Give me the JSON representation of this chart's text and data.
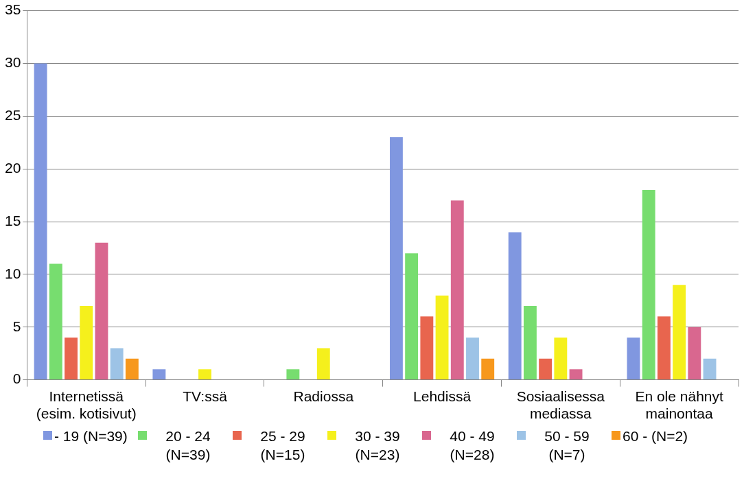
{
  "chart_data": {
    "type": "bar",
    "categories": [
      "Internetissä (esim. kotisivut)",
      "TV:ssä",
      "Radiossa",
      "Lehdissä",
      "Sosiaalisessa mediassa",
      "En ole nähnyt mainontaa"
    ],
    "series": [
      {
        "name": "- 19 (N=39)",
        "color": "#8097e0",
        "values": [
          30,
          1,
          null,
          23,
          14,
          4
        ]
      },
      {
        "name": "20 - 24 (N=39)",
        "color": "#77dd6f",
        "values": [
          11,
          null,
          1,
          12,
          7,
          18
        ]
      },
      {
        "name": "25 - 29 (N=15)",
        "color": "#e8654e",
        "values": [
          4,
          null,
          null,
          6,
          2,
          6
        ]
      },
      {
        "name": "30 - 39 (N=23)",
        "color": "#f5f01c",
        "values": [
          7,
          1,
          3,
          8,
          4,
          9
        ]
      },
      {
        "name": "40 - 49 (N=28)",
        "color": "#d9678f",
        "values": [
          13,
          null,
          null,
          17,
          1,
          5
        ]
      },
      {
        "name": "50 - 59 (N=7)",
        "color": "#9dc3e6",
        "values": [
          3,
          null,
          null,
          4,
          null,
          2
        ]
      },
      {
        "name": "60 - (N=2)",
        "color": "#f7981d",
        "values": [
          2,
          null,
          null,
          2,
          null,
          null
        ]
      }
    ],
    "ylim": [
      0,
      35
    ],
    "yticks": [
      0,
      5,
      10,
      15,
      20,
      25,
      30,
      35
    ],
    "grid": "y",
    "legend": "bottom"
  }
}
